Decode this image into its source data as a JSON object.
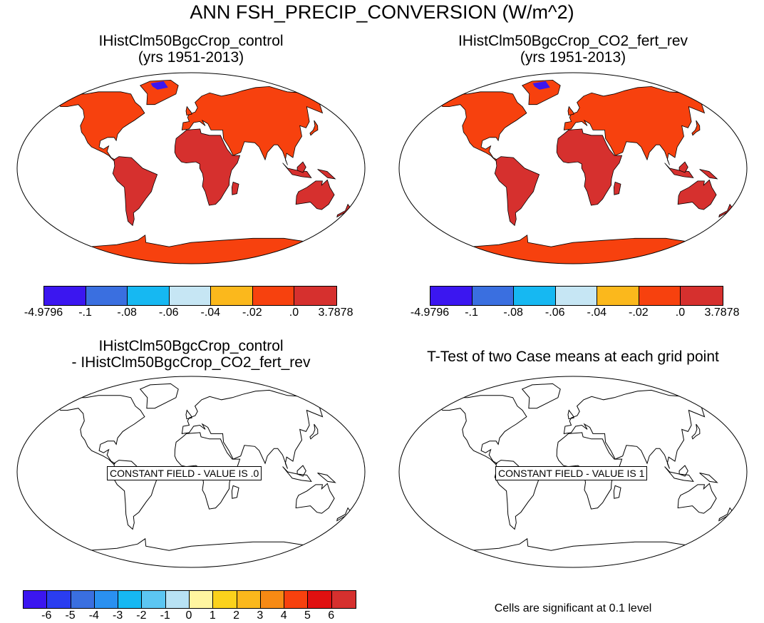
{
  "title": "ANN FSH_PRECIP_CONVERSION (W/m^2)",
  "panels": [
    {
      "title_line1": "IHistClm50BgcCrop_control",
      "title_line2": "(yrs 1951-2013)"
    },
    {
      "title_line1": "IHistClm50BgcCrop_CO2_fert_rev",
      "title_line2": "(yrs 1951-2013)"
    },
    {
      "title_line1": "IHistClm50BgcCrop_control",
      "title_line2": "- IHistClm50BgcCrop_CO2_fert_rev",
      "label": "CONSTANT FIELD - VALUE IS .0"
    },
    {
      "title_line1": "T-Test of two Case means at each grid point",
      "label": "CONSTANT FIELD - VALUE IS 1"
    }
  ],
  "colorbar_top": {
    "labels": [
      "-4.9796",
      "-.1",
      "-.08",
      "-.06",
      "-.04",
      "-.02",
      ".0",
      "3.7878"
    ],
    "colors": [
      "#3b16f0",
      "#3a6fe0",
      "#16b8f2",
      "#c6e6f4",
      "#fbb81c",
      "#f7410e",
      "#d6302e"
    ]
  },
  "colorbar_diff": {
    "labels": [
      "-6",
      "-5",
      "-4",
      "-3",
      "-2",
      "-1",
      "0",
      "1",
      "2",
      "3",
      "4",
      "5",
      "6"
    ],
    "colors": [
      "#3b16f0",
      "#2a3df0",
      "#3a6fe0",
      "#2a90f0",
      "#16b8f2",
      "#5cc6f2",
      "#b8e2f4",
      "#fff5a0",
      "#fbd21c",
      "#fbb81c",
      "#f78a14",
      "#f7410e",
      "#e01010",
      "#d6302e"
    ]
  },
  "footnote": "Cells are significant at 0.1 level",
  "map_colors": {
    "land_north": "#f7410e",
    "land_south": "#d6302e",
    "ice": "#3b16f0",
    "outline": "#000000"
  }
}
